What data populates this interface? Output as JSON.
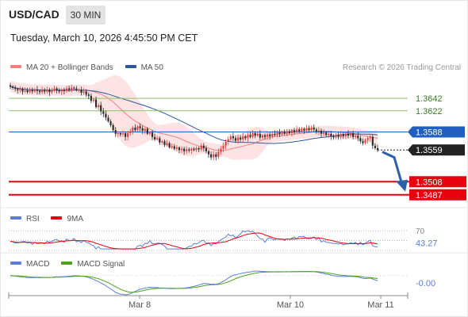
{
  "header": {
    "symbol": "USD/CAD",
    "timeframe": "30 MIN",
    "datetime": "Tuesday, March 10, 2026 4:45:50 PM CET",
    "credit": "Research © 2026 Trading Central"
  },
  "legends": {
    "price": [
      {
        "label": "MA 20 + Bollinger Bands",
        "color": "#f08080"
      },
      {
        "label": "MA 50",
        "color": "#2b5797"
      }
    ],
    "rsi": [
      {
        "label": "RSI",
        "color": "#5b7fd6"
      },
      {
        "label": "9MA",
        "color": "#e8000b"
      }
    ],
    "macd": [
      {
        "label": "MACD",
        "color": "#5b7fd6"
      },
      {
        "label": "MACD Signal",
        "color": "#4aa31a"
      }
    ]
  },
  "colors": {
    "up": "#e04040",
    "down": "#2b2b2b",
    "bollinger_fill": "#fde3e3",
    "resistance": "#8ac46a",
    "pivot": "#1f5fbf",
    "support": "#e8000b",
    "arrow": "#2b5fa8"
  },
  "chart_data": [
    {
      "type": "candlestick",
      "ylim": [
        1.3474,
        1.3665
      ],
      "x_ticks": [
        "Mar 8",
        "Mar 10",
        "Mar 11"
      ],
      "levels": [
        {
          "value": 1.3642,
          "label": "1.3642",
          "kind": "resistance"
        },
        {
          "value": 1.3622,
          "label": "1.3622",
          "kind": "resistance"
        },
        {
          "value": 1.3588,
          "label": "1.3588",
          "kind": "pivot"
        },
        {
          "value": 1.3559,
          "label": "1.3559",
          "kind": "last"
        },
        {
          "value": 1.3508,
          "label": "1.3508",
          "kind": "support"
        },
        {
          "value": 1.3487,
          "label": "1.3487",
          "kind": "support"
        }
      ],
      "close": [
        1.3661,
        1.3659,
        1.3657,
        1.3655,
        1.3657,
        1.3653,
        1.3655,
        1.3652,
        1.3655,
        1.3653,
        1.3656,
        1.3654,
        1.3652,
        1.3655,
        1.3653,
        1.3656,
        1.3652,
        1.3655,
        1.3658,
        1.3655,
        1.3653,
        1.3656,
        1.3654,
        1.3658,
        1.3656,
        1.3659,
        1.3658,
        1.3655,
        1.3656,
        1.3651,
        1.3653,
        1.3648,
        1.3646,
        1.3638,
        1.364,
        1.3628,
        1.3631,
        1.3621,
        1.3617,
        1.3611,
        1.3605,
        1.3599,
        1.3591,
        1.3585,
        1.3586,
        1.3584,
        1.3586,
        1.358,
        1.3586,
        1.3589,
        1.3595,
        1.3591,
        1.3597,
        1.3594,
        1.359,
        1.3593,
        1.3585,
        1.3587,
        1.358,
        1.3576,
        1.3578,
        1.3571,
        1.3573,
        1.3567,
        1.357,
        1.3563,
        1.3565,
        1.3561,
        1.3563,
        1.3559,
        1.3561,
        1.3557,
        1.356,
        1.3558,
        1.3561,
        1.3559,
        1.3562,
        1.356,
        1.3566,
        1.3562,
        1.3557,
        1.3552,
        1.3547,
        1.3552,
        1.3548,
        1.3556,
        1.3561,
        1.3566,
        1.3572,
        1.3576,
        1.3581,
        1.3578,
        1.3574,
        1.3579,
        1.3576,
        1.3581,
        1.3578,
        1.3583,
        1.358,
        1.3586,
        1.3582,
        1.3585,
        1.3579,
        1.3583,
        1.358,
        1.3584,
        1.3581,
        1.3585,
        1.3583,
        1.3587,
        1.3584,
        1.3588,
        1.3585,
        1.3589,
        1.3586,
        1.3591,
        1.3588,
        1.3592,
        1.3589,
        1.3593,
        1.359,
        1.3594,
        1.3591,
        1.3595,
        1.3592,
        1.3589,
        1.359,
        1.3585,
        1.3587,
        1.3583,
        1.3585,
        1.3581,
        1.3579,
        1.3583,
        1.358,
        1.3584,
        1.3581,
        1.3585,
        1.3582,
        1.3586,
        1.358,
        1.3582,
        1.3578,
        1.3573,
        1.357,
        1.3575,
        1.3578,
        1.358,
        1.3566,
        1.3562,
        1.3559
      ],
      "series": [
        {
          "name": "MA 20 + Bollinger Bands",
          "ma20_start": 1.3654,
          "ma20_end": 1.3576
        },
        {
          "name": "MA 50",
          "start": 1.3657,
          "end": 1.3581
        }
      ]
    },
    {
      "type": "line",
      "name": "RSI",
      "ylim": [
        30,
        75
      ],
      "ref_levels": [
        70,
        50,
        30
      ],
      "last_value": "43.27",
      "labels": [
        "70",
        "43.27"
      ],
      "series_names": [
        "RSI",
        "9MA"
      ]
    },
    {
      "type": "line",
      "name": "MACD",
      "last_value": "-0.00",
      "series_names": [
        "MACD",
        "MACD Signal"
      ]
    }
  ]
}
